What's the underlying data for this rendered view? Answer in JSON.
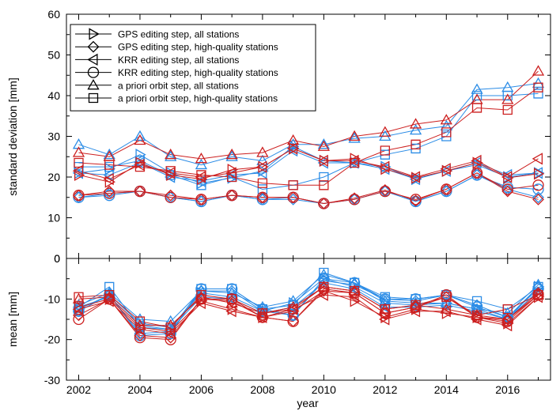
{
  "chart_data": {
    "type": "line",
    "x": [
      2002,
      2003,
      2004,
      2005,
      2006,
      2007,
      2008,
      2009,
      2010,
      2011,
      2012,
      2013,
      2014,
      2015,
      2016,
      2017
    ],
    "xlabel": "year",
    "x_ticks": [
      "2002",
      "2004",
      "2006",
      "2008",
      "2010",
      "2012",
      "2014",
      "2016"
    ],
    "xlim": [
      2001.6,
      2017.4
    ],
    "colors": {
      "red": "#cc1f1f",
      "blue": "#2b8ce6"
    },
    "legend": {
      "position": "top-left",
      "entries": [
        {
          "marker": "triangle-right",
          "label": "GPS editing step, all stations"
        },
        {
          "marker": "diamond",
          "label": "GPS editing step, high-quality stations"
        },
        {
          "marker": "triangle-left",
          "label": "KRR editing step, all stations"
        },
        {
          "marker": "circle",
          "label": "KRR editing step, high-quality stations"
        },
        {
          "marker": "triangle-up",
          "label": "a priori orbit step, all stations"
        },
        {
          "marker": "square",
          "label": "a priori orbit step, high-quality stations"
        }
      ]
    },
    "panels": [
      {
        "id": "std",
        "ylabel": "standard deviation [mm]",
        "ylim": [
          0,
          60
        ],
        "y_ticks": [
          "0",
          "10",
          "20",
          "30",
          "40",
          "50",
          "60"
        ],
        "series": [
          {
            "marker": "triangle-right",
            "color": "red",
            "values": [
              20.5,
              18.8,
              23.5,
              20.5,
              19.5,
              21.8,
              22.5,
              27.0,
              24.0,
              24.5,
              22.0,
              19.8,
              21.5,
              23.5,
              19.8,
              20.8
            ]
          },
          {
            "marker": "triangle-right",
            "color": "blue",
            "values": [
              21.0,
              22.0,
              25.5,
              21.0,
              18.5,
              19.8,
              21.5,
              27.5,
              24.0,
              23.5,
              22.5,
              19.5,
              21.5,
              23.0,
              20.0,
              21.0
            ]
          },
          {
            "marker": "diamond",
            "color": "red",
            "values": [
              15.5,
              16.5,
              16.5,
              15.5,
              14.5,
              15.5,
              15.0,
              15.0,
              13.5,
              14.8,
              16.8,
              14.2,
              17.0,
              21.0,
              16.5,
              14.5
            ]
          },
          {
            "marker": "diamond",
            "color": "blue",
            "values": [
              15.0,
              16.0,
              16.5,
              15.0,
              14.0,
              15.5,
              14.5,
              14.5,
              13.5,
              14.5,
              16.5,
              14.0,
              16.5,
              20.5,
              17.0,
              15.0
            ]
          },
          {
            "marker": "triangle-left",
            "color": "red",
            "values": [
              21.5,
              19.5,
              23.0,
              21.0,
              20.0,
              21.0,
              22.5,
              27.0,
              24.0,
              24.0,
              22.5,
              20.0,
              22.0,
              24.0,
              20.0,
              24.5
            ]
          },
          {
            "marker": "triangle-left",
            "color": "blue",
            "values": [
              21.0,
              20.5,
              23.5,
              20.0,
              19.0,
              20.5,
              21.0,
              26.5,
              23.5,
              23.5,
              22.0,
              19.5,
              21.5,
              23.5,
              20.5,
              21.0
            ]
          },
          {
            "marker": "circle",
            "color": "red",
            "values": [
              15.5,
              16.0,
              16.5,
              15.0,
              14.5,
              15.5,
              15.0,
              15.0,
              13.5,
              14.5,
              16.5,
              14.5,
              17.0,
              21.0,
              17.0,
              18.0
            ]
          },
          {
            "marker": "circle",
            "color": "blue",
            "values": [
              15.0,
              15.5,
              16.5,
              15.0,
              14.0,
              15.5,
              14.5,
              15.0,
              13.5,
              14.5,
              16.5,
              14.0,
              16.5,
              20.5,
              17.5,
              17.0
            ]
          },
          {
            "marker": "triangle-up",
            "color": "red",
            "values": [
              26.0,
              25.0,
              29.0,
              25.5,
              24.5,
              25.5,
              26.0,
              29.0,
              27.5,
              30.0,
              31.0,
              33.0,
              34.0,
              39.0,
              39.0,
              46.0
            ]
          },
          {
            "marker": "triangle-up",
            "color": "blue",
            "values": [
              28.0,
              25.5,
              30.0,
              25.0,
              23.0,
              25.0,
              24.0,
              28.0,
              28.0,
              29.5,
              30.0,
              31.5,
              32.5,
              41.5,
              42.0,
              43.0
            ]
          },
          {
            "marker": "square",
            "color": "red",
            "values": [
              23.5,
              23.0,
              22.5,
              21.5,
              20.5,
              20.0,
              18.5,
              18.0,
              18.0,
              23.5,
              26.5,
              28.0,
              31.0,
              37.0,
              36.5,
              42.0
            ]
          },
          {
            "marker": "square",
            "color": "blue",
            "values": [
              22.5,
              22.5,
              24.0,
              20.5,
              18.0,
              20.0,
              17.0,
              18.0,
              20.0,
              23.5,
              25.5,
              27.0,
              30.0,
              40.0,
              40.0,
              40.5
            ]
          }
        ]
      },
      {
        "id": "mean",
        "ylabel": "mean [mm]",
        "ylim": [
          -30,
          0
        ],
        "y_ticks": [
          "-30",
          "-20",
          "-10",
          "0"
        ],
        "series": [
          {
            "marker": "triangle-right",
            "color": "red",
            "values": [
              -12.0,
              -10.0,
              -17.0,
              -18.0,
              -10.5,
              -12.5,
              -14.5,
              -13.0,
              -8.0,
              -10.5,
              -14.5,
              -12.5,
              -13.5,
              -14.5,
              -16.0,
              -9.5
            ]
          },
          {
            "marker": "triangle-right",
            "color": "blue",
            "values": [
              -12.5,
              -9.0,
              -16.0,
              -17.0,
              -8.5,
              -9.5,
              -13.0,
              -11.0,
              -5.0,
              -7.0,
              -11.0,
              -11.5,
              -11.0,
              -12.5,
              -15.0,
              -7.0
            ]
          },
          {
            "marker": "diamond",
            "color": "red",
            "values": [
              -14.0,
              -10.0,
              -19.0,
              -19.5,
              -10.0,
              -10.5,
              -14.5,
              -15.5,
              -8.0,
              -8.5,
              -13.5,
              -12.0,
              -9.5,
              -14.5,
              -15.0,
              -8.5
            ]
          },
          {
            "marker": "diamond",
            "color": "blue",
            "values": [
              -13.0,
              -9.0,
              -18.5,
              -18.0,
              -8.0,
              -8.0,
              -13.0,
              -14.0,
              -5.5,
              -6.5,
              -10.0,
              -10.5,
              -9.0,
              -11.5,
              -14.5,
              -7.0
            ]
          },
          {
            "marker": "triangle-left",
            "color": "red",
            "values": [
              -12.5,
              -10.5,
              -17.5,
              -18.5,
              -11.0,
              -13.0,
              -14.5,
              -12.5,
              -9.0,
              -9.5,
              -15.0,
              -13.0,
              -13.0,
              -15.0,
              -16.5,
              -9.5
            ]
          },
          {
            "marker": "triangle-left",
            "color": "blue",
            "values": [
              -12.0,
              -9.5,
              -16.5,
              -17.5,
              -9.5,
              -10.0,
              -13.5,
              -12.0,
              -6.0,
              -7.5,
              -12.0,
              -12.0,
              -11.5,
              -13.0,
              -15.0,
              -8.0
            ]
          },
          {
            "marker": "circle",
            "color": "red",
            "values": [
              -15.0,
              -10.0,
              -19.5,
              -20.0,
              -10.0,
              -10.0,
              -14.5,
              -15.5,
              -7.5,
              -8.5,
              -13.5,
              -12.0,
              -9.0,
              -14.5,
              -15.5,
              -9.0
            ]
          },
          {
            "marker": "circle",
            "color": "blue",
            "values": [
              -13.0,
              -9.0,
              -19.0,
              -18.5,
              -7.5,
              -7.5,
              -12.5,
              -14.0,
              -5.0,
              -6.0,
              -10.0,
              -10.0,
              -9.0,
              -12.0,
              -14.5,
              -7.5
            ]
          },
          {
            "marker": "triangle-up",
            "color": "red",
            "values": [
              -10.0,
              -9.5,
              -16.5,
              -16.5,
              -9.5,
              -11.0,
              -13.5,
              -12.0,
              -7.0,
              -8.0,
              -12.5,
              -11.5,
              -12.5,
              -14.0,
              -15.0,
              -9.0
            ]
          },
          {
            "marker": "triangle-up",
            "color": "blue",
            "values": [
              -11.5,
              -8.5,
              -15.0,
              -15.5,
              -8.0,
              -8.5,
              -12.0,
              -10.5,
              -4.0,
              -6.0,
              -10.5,
              -11.0,
              -11.0,
              -12.5,
              -13.5,
              -6.5
            ]
          },
          {
            "marker": "square",
            "color": "red",
            "values": [
              -9.5,
              -9.0,
              -15.5,
              -17.0,
              -9.0,
              -10.0,
              -13.5,
              -12.5,
              -7.0,
              -8.0,
              -12.5,
              -11.5,
              -9.5,
              -14.0,
              -12.5,
              -9.0
            ]
          },
          {
            "marker": "square",
            "color": "blue",
            "values": [
              -12.0,
              -7.0,
              -17.0,
              -17.5,
              -7.5,
              -7.5,
              -12.5,
              -11.5,
              -3.5,
              -6.0,
              -9.5,
              -10.0,
              -9.0,
              -10.5,
              -12.5,
              -7.0
            ]
          }
        ]
      }
    ]
  }
}
